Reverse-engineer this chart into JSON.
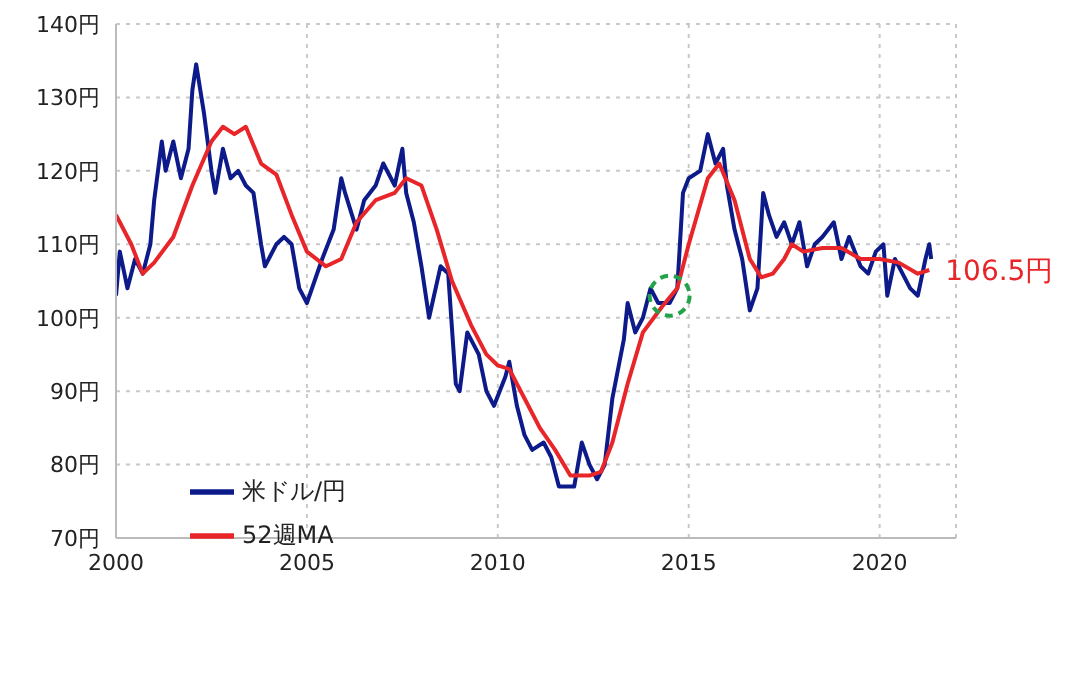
{
  "chart_data": {
    "type": "line",
    "xlim": [
      2000,
      2022
    ],
    "xticks": [
      2000,
      2005,
      2010,
      2015,
      2020
    ],
    "ylim": [
      70,
      140
    ],
    "yticks": [
      {
        "value": 70,
        "label": "70円"
      },
      {
        "value": 80,
        "label": "80円"
      },
      {
        "value": 90,
        "label": "90円"
      },
      {
        "value": 100,
        "label": "100円"
      },
      {
        "value": 110,
        "label": "110円"
      },
      {
        "value": 120,
        "label": "120円"
      },
      {
        "value": 130,
        "label": "130円"
      },
      {
        "value": 140,
        "label": "140円"
      }
    ],
    "grid": true,
    "legend": "bottom left",
    "marker": "none",
    "line_style": "solid",
    "annotations": [
      {
        "text": "106.5円",
        "x": 2021.3,
        "y": 106.5
      }
    ],
    "series": [
      {
        "name": "米ドル/円",
        "color": "#0d1a8a",
        "x": [
          2000.0,
          2000.1,
          2000.3,
          2000.5,
          2000.7,
          2000.9,
          2001.0,
          2001.2,
          2001.3,
          2001.5,
          2001.7,
          2001.9,
          2002.0,
          2002.1,
          2002.3,
          2002.5,
          2002.6,
          2002.8,
          2003.0,
          2003.2,
          2003.4,
          2003.6,
          2003.8,
          2003.9,
          2004.2,
          2004.4,
          2004.6,
          2004.8,
          2005.0,
          2005.2,
          2005.4,
          2005.7,
          2005.9,
          2006.0,
          2006.3,
          2006.5,
          2006.8,
          2007.0,
          2007.3,
          2007.5,
          2007.6,
          2007.8,
          2008.0,
          2008.2,
          2008.5,
          2008.7,
          2008.9,
          2009.0,
          2009.2,
          2009.5,
          2009.7,
          2009.9,
          2010.2,
          2010.3,
          2010.5,
          2010.7,
          2010.9,
          2011.2,
          2011.4,
          2011.6,
          2011.8,
          2012.0,
          2012.2,
          2012.4,
          2012.6,
          2012.8,
          2013.0,
          2013.3,
          2013.4,
          2013.6,
          2013.8,
          2014.0,
          2014.2,
          2014.5,
          2014.7,
          2014.85,
          2015.0,
          2015.3,
          2015.5,
          2015.7,
          2015.9,
          2016.0,
          2016.2,
          2016.4,
          2016.6,
          2016.8,
          2016.95,
          2017.1,
          2017.3,
          2017.5,
          2017.7,
          2017.9,
          2018.1,
          2018.3,
          2018.5,
          2018.8,
          2019.0,
          2019.2,
          2019.5,
          2019.7,
          2019.9,
          2020.1,
          2020.2,
          2020.4,
          2020.6,
          2020.8,
          2021.0,
          2021.2,
          2021.3,
          2021.35
        ],
        "values": [
          103,
          109,
          104,
          108,
          106,
          110,
          116,
          124,
          120,
          124,
          119,
          123,
          131,
          134.5,
          128,
          120,
          117,
          123,
          119,
          120,
          118,
          117,
          110,
          107,
          110,
          111,
          110,
          104,
          102,
          105,
          108,
          112,
          119,
          117,
          112,
          116,
          118,
          121,
          118,
          123,
          117,
          113,
          107,
          100,
          107,
          106,
          91,
          90,
          98,
          95,
          90,
          88,
          92,
          94,
          88,
          84,
          82,
          83,
          81,
          77,
          77,
          77,
          83,
          80,
          78,
          80,
          89,
          97,
          102,
          98,
          100,
          104,
          102,
          102,
          104,
          117,
          119,
          120,
          125,
          121,
          123,
          118,
          112,
          108,
          101,
          104,
          117,
          114,
          111,
          113,
          110,
          113,
          107,
          110,
          111,
          113,
          108,
          111,
          107,
          106,
          109,
          110,
          103,
          108,
          106,
          104,
          103,
          108,
          110,
          108
        ]
      },
      {
        "name": "52週MA",
        "color": "#e8262a",
        "x": [
          2000.0,
          2000.4,
          2000.7,
          2001.0,
          2001.5,
          2002.0,
          2002.5,
          2002.8,
          2003.1,
          2003.4,
          2003.8,
          2004.2,
          2004.6,
          2005.0,
          2005.5,
          2005.9,
          2006.3,
          2006.8,
          2007.3,
          2007.6,
          2008.0,
          2008.4,
          2008.8,
          2009.3,
          2009.7,
          2010.0,
          2010.3,
          2010.7,
          2011.1,
          2011.5,
          2011.9,
          2012.4,
          2012.7,
          2013.0,
          2013.4,
          2013.8,
          2014.3,
          2014.7,
          2015.0,
          2015.5,
          2015.8,
          2016.2,
          2016.6,
          2016.9,
          2017.2,
          2017.5,
          2017.7,
          2018.0,
          2018.5,
          2019.0,
          2019.5,
          2020.0,
          2020.5,
          2021.0,
          2021.3
        ],
        "values": [
          114,
          110,
          106,
          107.5,
          111,
          118,
          124,
          126,
          125,
          126,
          121,
          119.5,
          114,
          109,
          107,
          108,
          113,
          116,
          117,
          119,
          118,
          112,
          105,
          99,
          95,
          93.5,
          93,
          89,
          85,
          82,
          78.5,
          78.5,
          79,
          83,
          91,
          98,
          101.5,
          104,
          110,
          119,
          121,
          116,
          108,
          105.5,
          106,
          108,
          110,
          109,
          109.5,
          109.5,
          108,
          108,
          107.5,
          106,
          106.5
        ]
      }
    ]
  }
}
